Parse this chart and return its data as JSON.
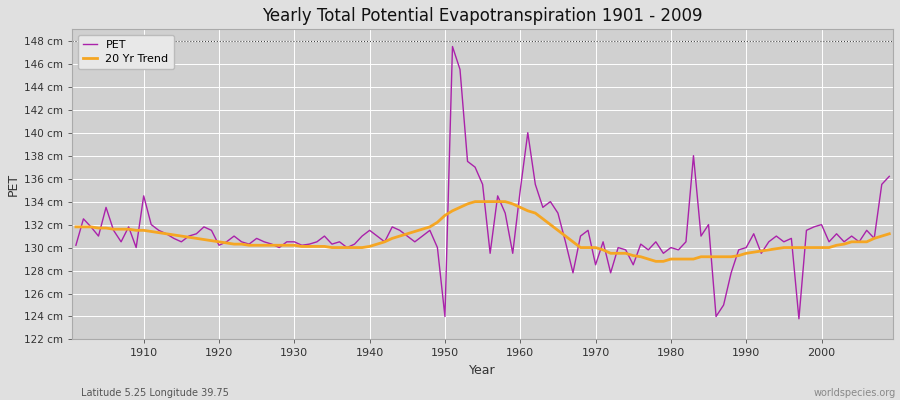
{
  "title": "Yearly Total Potential Evapotranspiration 1901 - 2009",
  "xlabel": "Year",
  "ylabel": "PET",
  "subtitle": "Latitude 5.25 Longitude 39.75",
  "watermark": "worldspecies.org",
  "ylim": [
    122,
    149
  ],
  "ytick_step": 2,
  "xlim": [
    1901,
    2009
  ],
  "background_color": "#e0e0e0",
  "plot_bg_color": "#d0d0d0",
  "pet_color": "#aa22aa",
  "trend_color": "#f5a623",
  "legend_pet": "PET",
  "legend_trend": "20 Yr Trend",
  "pet_data": {
    "years": [
      1901,
      1902,
      1903,
      1904,
      1905,
      1906,
      1907,
      1908,
      1909,
      1910,
      1911,
      1912,
      1913,
      1914,
      1915,
      1916,
      1917,
      1918,
      1919,
      1920,
      1921,
      1922,
      1923,
      1924,
      1925,
      1926,
      1927,
      1928,
      1929,
      1930,
      1931,
      1932,
      1933,
      1934,
      1935,
      1936,
      1937,
      1938,
      1939,
      1940,
      1941,
      1942,
      1943,
      1944,
      1945,
      1946,
      1947,
      1948,
      1949,
      1950,
      1951,
      1952,
      1953,
      1954,
      1955,
      1956,
      1957,
      1958,
      1959,
      1960,
      1961,
      1962,
      1963,
      1964,
      1965,
      1966,
      1967,
      1968,
      1969,
      1970,
      1971,
      1972,
      1973,
      1974,
      1975,
      1976,
      1977,
      1978,
      1979,
      1980,
      1981,
      1982,
      1983,
      1984,
      1985,
      1986,
      1987,
      1988,
      1989,
      1990,
      1991,
      1992,
      1993,
      1994,
      1995,
      1996,
      1997,
      1998,
      1999,
      2000,
      2001,
      2002,
      2003,
      2004,
      2005,
      2006,
      2007,
      2008,
      2009
    ],
    "values": [
      130.2,
      132.5,
      131.8,
      131.0,
      133.5,
      131.5,
      130.5,
      131.8,
      130.0,
      134.5,
      132.0,
      131.5,
      131.2,
      130.8,
      130.5,
      131.0,
      131.2,
      131.8,
      131.5,
      130.2,
      130.5,
      131.0,
      130.5,
      130.3,
      130.8,
      130.5,
      130.3,
      130.0,
      130.5,
      130.5,
      130.2,
      130.3,
      130.5,
      131.0,
      130.3,
      130.5,
      130.0,
      130.3,
      131.0,
      131.5,
      131.0,
      130.5,
      131.8,
      131.5,
      131.0,
      130.5,
      131.0,
      131.5,
      130.0,
      124.0,
      147.5,
      145.5,
      137.5,
      137.0,
      135.5,
      129.5,
      134.5,
      133.0,
      129.5,
      135.0,
      140.0,
      135.5,
      133.5,
      134.0,
      133.0,
      130.5,
      127.8,
      131.0,
      131.5,
      128.5,
      130.5,
      127.8,
      130.0,
      129.8,
      128.5,
      130.3,
      129.8,
      130.5,
      129.5,
      130.0,
      129.8,
      130.5,
      138.0,
      131.0,
      132.0,
      124.0,
      125.0,
      127.8,
      129.8,
      130.0,
      131.2,
      129.5,
      130.5,
      131.0,
      130.5,
      130.8,
      123.8,
      131.5,
      131.8,
      132.0,
      130.5,
      131.2,
      130.5,
      131.0,
      130.5,
      131.5,
      130.8,
      135.5,
      136.2
    ]
  },
  "trend_data": {
    "years": [
      1901,
      1902,
      1903,
      1904,
      1905,
      1906,
      1907,
      1908,
      1909,
      1910,
      1911,
      1912,
      1913,
      1914,
      1915,
      1916,
      1917,
      1918,
      1919,
      1920,
      1921,
      1922,
      1923,
      1924,
      1925,
      1926,
      1927,
      1928,
      1929,
      1930,
      1931,
      1932,
      1933,
      1934,
      1935,
      1936,
      1937,
      1938,
      1939,
      1940,
      1941,
      1942,
      1943,
      1944,
      1945,
      1946,
      1947,
      1948,
      1949,
      1950,
      1951,
      1952,
      1953,
      1954,
      1955,
      1956,
      1957,
      1958,
      1959,
      1960,
      1961,
      1962,
      1963,
      1964,
      1965,
      1966,
      1967,
      1968,
      1969,
      1970,
      1971,
      1972,
      1973,
      1974,
      1975,
      1976,
      1977,
      1978,
      1979,
      1980,
      1981,
      1982,
      1983,
      1984,
      1985,
      1986,
      1987,
      1988,
      1989,
      1990,
      1991,
      1992,
      1993,
      1994,
      1995,
      1996,
      1997,
      1998,
      1999,
      2000,
      2001,
      2002,
      2003,
      2004,
      2005,
      2006,
      2007,
      2008,
      2009
    ],
    "values": [
      131.8,
      131.8,
      131.8,
      131.7,
      131.7,
      131.6,
      131.6,
      131.6,
      131.5,
      131.5,
      131.4,
      131.3,
      131.2,
      131.1,
      131.0,
      130.9,
      130.8,
      130.7,
      130.6,
      130.5,
      130.4,
      130.3,
      130.3,
      130.2,
      130.2,
      130.2,
      130.2,
      130.2,
      130.2,
      130.2,
      130.1,
      130.1,
      130.1,
      130.1,
      130.0,
      130.0,
      130.0,
      130.0,
      130.0,
      130.1,
      130.3,
      130.5,
      130.8,
      131.0,
      131.2,
      131.4,
      131.6,
      131.8,
      132.2,
      132.8,
      133.2,
      133.5,
      133.8,
      134.0,
      134.0,
      134.0,
      134.0,
      134.0,
      133.8,
      133.5,
      133.2,
      133.0,
      132.5,
      132.0,
      131.5,
      131.0,
      130.5,
      130.0,
      130.0,
      130.0,
      129.8,
      129.5,
      129.5,
      129.5,
      129.3,
      129.2,
      129.0,
      128.8,
      128.8,
      129.0,
      129.0,
      129.0,
      129.0,
      129.2,
      129.2,
      129.2,
      129.2,
      129.2,
      129.3,
      129.5,
      129.6,
      129.7,
      129.8,
      129.9,
      130.0,
      130.0,
      130.0,
      130.0,
      130.0,
      130.0,
      130.0,
      130.2,
      130.3,
      130.5,
      130.5,
      130.5,
      130.8,
      131.0,
      131.2
    ]
  }
}
